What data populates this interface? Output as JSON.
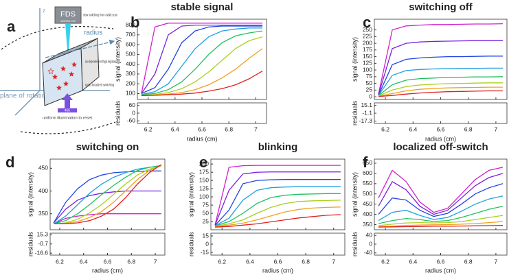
{
  "diagram": {
    "label": "a",
    "z": "z",
    "fds": "FDS",
    "filters": "488/505-560",
    "slow_switching": "slow switching from radial scan",
    "radius": "radius",
    "migration": "size-dependent centrifugal migration",
    "localized": "rapid localized switching",
    "laser": "405",
    "reset": "uniform illumination to reset",
    "plane": "plane of rotation"
  },
  "chart_data": [
    {
      "type": "line",
      "label": "b",
      "title": "stable signal",
      "ylabel": "signal (intensity)",
      "xlabel": "radius (cm)",
      "residual_ylabel": "residuals",
      "x": [
        6.15,
        6.25,
        6.35,
        6.45,
        6.55,
        6.65,
        6.75,
        6.85,
        6.95,
        7.05
      ],
      "xlim": [
        6.12,
        7.08
      ],
      "xticks": [
        6.2,
        6.4,
        6.6,
        6.8,
        7.0
      ],
      "ylim": [
        40,
        860
      ],
      "yticks": [
        100,
        200,
        300,
        400,
        500,
        600,
        700,
        800
      ],
      "residual_ylim": [
        -80,
        80
      ],
      "residual_yticks": [
        60,
        0,
        -60
      ],
      "series": [
        {
          "color": "#d020d0",
          "values": [
            100,
            780,
            820,
            820,
            820,
            820,
            820,
            820,
            820,
            820
          ]
        },
        {
          "color": "#7a22e0",
          "values": [
            100,
            300,
            700,
            790,
            800,
            800,
            800,
            800,
            800,
            800
          ]
        },
        {
          "color": "#2244e0",
          "values": [
            100,
            160,
            350,
            620,
            740,
            780,
            790,
            790,
            790,
            790
          ]
        },
        {
          "color": "#20a0e0",
          "values": [
            90,
            120,
            200,
            380,
            560,
            680,
            740,
            760,
            770,
            770
          ]
        },
        {
          "color": "#20c060",
          "values": [
            90,
            100,
            140,
            220,
            350,
            500,
            620,
            690,
            720,
            740
          ]
        },
        {
          "color": "#a8d020",
          "values": [
            80,
            90,
            110,
            150,
            220,
            320,
            440,
            560,
            640,
            680
          ]
        },
        {
          "color": "#f0a020",
          "values": [
            80,
            85,
            95,
            110,
            140,
            190,
            260,
            350,
            460,
            560
          ]
        },
        {
          "color": "#e02020",
          "values": [
            80,
            82,
            88,
            95,
            105,
            125,
            150,
            190,
            250,
            330
          ]
        }
      ]
    },
    {
      "type": "line",
      "label": "c",
      "title": "switching off",
      "ylabel": "signal (intensity)",
      "xlabel": "radius (cm)",
      "residual_ylabel": "residuals",
      "x": [
        6.15,
        6.25,
        6.35,
        6.45,
        6.55,
        6.65,
        6.75,
        6.85,
        6.95,
        7.05
      ],
      "xlim": [
        6.12,
        7.08
      ],
      "xticks": [
        6.2,
        6.4,
        6.6,
        6.8,
        7.0
      ],
      "ylim": [
        -10,
        290
      ],
      "yticks": [
        0,
        25,
        50,
        75,
        100,
        125,
        150,
        175,
        200,
        225,
        250
      ],
      "residual_ylim": [
        -22,
        20
      ],
      "residual_yticks": [
        15.1,
        -1.1,
        -17.3
      ],
      "series": [
        {
          "color": "#d020d0",
          "values": [
            10,
            250,
            265,
            268,
            270,
            270,
            271,
            272,
            272,
            273
          ]
        },
        {
          "color": "#7a22e0",
          "values": [
            8,
            180,
            200,
            205,
            207,
            208,
            209,
            210,
            210,
            210
          ]
        },
        {
          "color": "#2244e0",
          "values": [
            6,
            120,
            140,
            145,
            148,
            150,
            150,
            151,
            152,
            152
          ]
        },
        {
          "color": "#20a0e0",
          "values": [
            5,
            80,
            98,
            102,
            104,
            105,
            106,
            106,
            107,
            107
          ]
        },
        {
          "color": "#20c060",
          "values": [
            4,
            45,
            62,
            68,
            70,
            72,
            73,
            74,
            74,
            75
          ]
        },
        {
          "color": "#a8d020",
          "values": [
            3,
            25,
            38,
            44,
            47,
            49,
            50,
            51,
            52,
            52
          ]
        },
        {
          "color": "#f0a020",
          "values": [
            2,
            12,
            22,
            28,
            31,
            33,
            34,
            35,
            36,
            36
          ]
        },
        {
          "color": "#e02020",
          "values": [
            1,
            5,
            10,
            14,
            17,
            19,
            20,
            21,
            22,
            22
          ]
        }
      ]
    },
    {
      "type": "line",
      "label": "d",
      "title": "switching on",
      "ylabel": "signal (intensity)",
      "xlabel": "radius (cm)",
      "residual_ylabel": "residuals",
      "x": [
        6.15,
        6.25,
        6.35,
        6.45,
        6.55,
        6.65,
        6.75,
        6.85,
        6.95,
        7.05
      ],
      "xlim": [
        6.12,
        7.08
      ],
      "xticks": [
        6.2,
        6.4,
        6.6,
        6.8,
        7.0
      ],
      "ylim": [
        315,
        470
      ],
      "yticks": [
        350,
        400,
        450
      ],
      "residual_ylim": [
        -20,
        18
      ],
      "residual_yticks": [
        15.3,
        -0.7,
        -16.6
      ],
      "series": [
        {
          "color": "#d020d0",
          "values": [
            328,
            340,
            345,
            348,
            350,
            350,
            350,
            350,
            350,
            350
          ]
        },
        {
          "color": "#7a22e0",
          "values": [
            330,
            360,
            380,
            390,
            395,
            398,
            400,
            400,
            400,
            400
          ]
        },
        {
          "color": "#2244e0",
          "values": [
            330,
            375,
            405,
            425,
            435,
            440,
            442,
            443,
            444,
            444
          ]
        },
        {
          "color": "#20a0e0",
          "values": [
            328,
            345,
            370,
            395,
            415,
            430,
            440,
            448,
            452,
            455
          ]
        },
        {
          "color": "#20c060",
          "values": [
            328,
            335,
            350,
            370,
            392,
            412,
            430,
            445,
            452,
            456
          ]
        },
        {
          "color": "#a8d020",
          "values": [
            328,
            330,
            338,
            352,
            370,
            392,
            415,
            435,
            448,
            455
          ]
        },
        {
          "color": "#f0a020",
          "values": [
            328,
            329,
            333,
            342,
            355,
            375,
            400,
            425,
            445,
            456
          ]
        },
        {
          "color": "#e02020",
          "values": [
            328,
            328,
            330,
            335,
            345,
            360,
            385,
            415,
            440,
            458
          ]
        }
      ]
    },
    {
      "type": "line",
      "label": "e",
      "title": "blinking",
      "ylabel": "signal (intensity)",
      "xlabel": "radius (cm)",
      "residual_ylabel": "residuals",
      "x": [
        6.15,
        6.25,
        6.35,
        6.45,
        6.55,
        6.65,
        6.75,
        6.85,
        6.95,
        7.05
      ],
      "xlim": [
        6.12,
        7.08
      ],
      "xticks": [
        6.2,
        6.4,
        6.6,
        6.8,
        7.0
      ],
      "ylim": [
        0,
        215
      ],
      "yticks": [
        25,
        50,
        75,
        100,
        125,
        150,
        175,
        200
      ],
      "residual_ylim": [
        -20,
        20
      ],
      "residual_yticks": [
        15,
        0,
        -15
      ],
      "series": [
        {
          "color": "#d020d0",
          "values": [
            15,
            190,
            195,
            196,
            196,
            196,
            196,
            196,
            196,
            196
          ]
        },
        {
          "color": "#7a22e0",
          "values": [
            14,
            120,
            170,
            175,
            176,
            176,
            176,
            176,
            176,
            176
          ]
        },
        {
          "color": "#2244e0",
          "values": [
            13,
            60,
            140,
            150,
            152,
            153,
            153,
            153,
            153,
            153
          ]
        },
        {
          "color": "#20a0e0",
          "values": [
            12,
            35,
            90,
            120,
            128,
            130,
            131,
            131,
            131,
            131
          ]
        },
        {
          "color": "#20c060",
          "values": [
            11,
            25,
            50,
            80,
            98,
            105,
            108,
            109,
            110,
            110
          ]
        },
        {
          "color": "#a8d020",
          "values": [
            10,
            18,
            30,
            50,
            68,
            80,
            86,
            88,
            89,
            90
          ]
        },
        {
          "color": "#f0a020",
          "values": [
            9,
            14,
            20,
            30,
            42,
            54,
            62,
            66,
            68,
            69
          ]
        },
        {
          "color": "#e02020",
          "values": [
            8,
            10,
            14,
            18,
            24,
            30,
            36,
            40,
            44,
            46
          ]
        }
      ]
    },
    {
      "type": "line",
      "label": "f",
      "title": "localized off-switch",
      "ylabel": "signal (intensity)",
      "xlabel": "radius (cm)",
      "residual_ylabel": "residuals",
      "x": [
        6.15,
        6.25,
        6.35,
        6.45,
        6.55,
        6.65,
        6.75,
        6.85,
        6.95,
        7.05
      ],
      "xlim": [
        6.12,
        7.08
      ],
      "xticks": [
        6.2,
        6.4,
        6.6,
        6.8,
        7.0
      ],
      "ylim": [
        325,
        670
      ],
      "yticks": [
        350,
        400,
        450,
        500,
        550,
        600,
        650
      ],
      "residual_ylim": [
        -50,
        50
      ],
      "residual_yticks": [
        40,
        0,
        -40
      ],
      "series": [
        {
          "color": "#d020d0",
          "values": [
            480,
            615,
            560,
            460,
            410,
            430,
            500,
            570,
            615,
            630
          ]
        },
        {
          "color": "#7a22e0",
          "values": [
            440,
            560,
            520,
            440,
            400,
            420,
            480,
            540,
            580,
            600
          ]
        },
        {
          "color": "#2244e0",
          "values": [
            400,
            480,
            470,
            420,
            390,
            405,
            450,
            500,
            530,
            550
          ]
        },
        {
          "color": "#20a0e0",
          "values": [
            370,
            410,
            420,
            395,
            375,
            385,
            415,
            450,
            475,
            490
          ]
        },
        {
          "color": "#20c060",
          "values": [
            355,
            370,
            380,
            375,
            365,
            370,
            385,
            405,
            425,
            440
          ]
        },
        {
          "color": "#a8d020",
          "values": [
            345,
            352,
            358,
            360,
            358,
            360,
            365,
            375,
            385,
            395
          ]
        },
        {
          "color": "#f0a020",
          "values": [
            340,
            343,
            346,
            348,
            349,
            350,
            352,
            355,
            360,
            365
          ]
        },
        {
          "color": "#e02020",
          "values": [
            338,
            339,
            340,
            341,
            342,
            342,
            343,
            344,
            345,
            346
          ]
        }
      ]
    }
  ]
}
